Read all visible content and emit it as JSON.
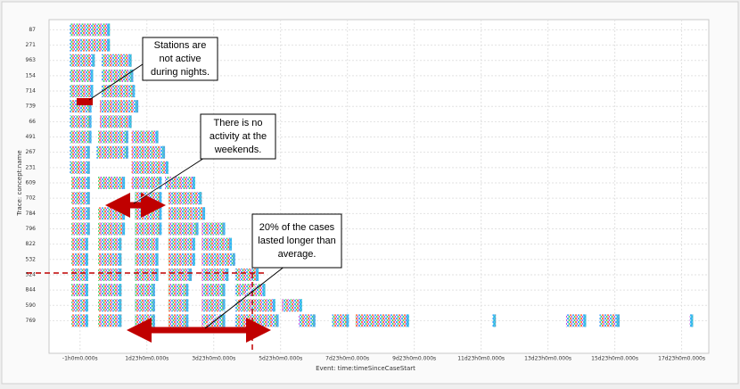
{
  "chart_data": {
    "type": "dotted",
    "x_label": "Event: time:timeSinceCaseStart",
    "y_label": "Trace: concept:name",
    "xlim": [
      -0.97,
      18.77
    ],
    "ylim": [
      -0.2,
      20.2
    ],
    "xticks": [
      {
        "value": -0.042,
        "label": "-1h0m0.000s"
      },
      {
        "value": 1.958,
        "label": "1d23h0m0.000s"
      },
      {
        "value": 3.958,
        "label": "3d23h0m0.000s"
      },
      {
        "value": 5.958,
        "label": "5d23h0m0.000s"
      },
      {
        "value": 7.958,
        "label": "7d23h0m0.000s"
      },
      {
        "value": 9.958,
        "label": "9d23h0m0.000s"
      },
      {
        "value": 11.958,
        "label": "11d23h0m0.000s"
      },
      {
        "value": 13.958,
        "label": "13d23h0m0.000s"
      },
      {
        "value": 15.958,
        "label": "15d23h0m0.000s"
      },
      {
        "value": 17.958,
        "label": "17d23h0m0.000s"
      }
    ],
    "yticks": [
      {
        "value": 0,
        "label": "87"
      },
      {
        "value": 1,
        "label": "271"
      },
      {
        "value": 2,
        "label": "963"
      },
      {
        "value": 3,
        "label": "154"
      },
      {
        "value": 4,
        "label": "714"
      },
      {
        "value": 5,
        "label": "739"
      },
      {
        "value": 6,
        "label": "66"
      },
      {
        "value": 7,
        "label": "491"
      },
      {
        "value": 8,
        "label": "267"
      },
      {
        "value": 9,
        "label": "231"
      },
      {
        "value": 10,
        "label": "609"
      },
      {
        "value": 11,
        "label": "702"
      },
      {
        "value": 12,
        "label": "784"
      },
      {
        "value": 13,
        "label": "796"
      },
      {
        "value": 14,
        "label": "822"
      },
      {
        "value": 15,
        "label": "532"
      },
      {
        "value": 16,
        "label": "524"
      },
      {
        "value": 17,
        "label": "844"
      },
      {
        "value": 18,
        "label": "590"
      },
      {
        "value": 19,
        "label": "769"
      }
    ],
    "grid": true,
    "segments": [
      [
        0,
        -0.35,
        0.85
      ],
      [
        1,
        -0.35,
        0.85
      ],
      [
        2,
        -0.35,
        0.4
      ],
      [
        2,
        0.6,
        1.5
      ],
      [
        3,
        -0.35,
        0.35
      ],
      [
        3,
        0.6,
        1.55
      ],
      [
        4,
        -0.35,
        0.35
      ],
      [
        4,
        0.6,
        1.6
      ],
      [
        5,
        -0.35,
        0.3
      ],
      [
        5,
        0.55,
        1.7
      ],
      [
        6,
        -0.35,
        0.3
      ],
      [
        6,
        0.55,
        1.5
      ],
      [
        7,
        -0.35,
        0.3
      ],
      [
        7,
        0.5,
        1.4
      ],
      [
        7,
        1.5,
        2.3
      ],
      [
        8,
        -0.35,
        0.25
      ],
      [
        8,
        0.45,
        1.4
      ],
      [
        8,
        1.5,
        2.5
      ],
      [
        9,
        -0.35,
        0.25
      ],
      [
        9,
        1.5,
        2.6
      ],
      [
        10,
        -0.3,
        0.25
      ],
      [
        10,
        0.5,
        1.3
      ],
      [
        10,
        1.5,
        2.4
      ],
      [
        10,
        2.5,
        3.4
      ],
      [
        11,
        -0.3,
        0.25
      ],
      [
        11,
        1.6,
        2.4
      ],
      [
        11,
        2.6,
        3.6
      ],
      [
        12,
        -0.3,
        0.25
      ],
      [
        12,
        0.5,
        1.3
      ],
      [
        12,
        1.6,
        2.4
      ],
      [
        12,
        2.6,
        3.7
      ],
      [
        13,
        -0.3,
        0.25
      ],
      [
        13,
        0.5,
        1.3
      ],
      [
        13,
        1.6,
        2.4
      ],
      [
        13,
        2.6,
        3.5
      ],
      [
        13,
        3.6,
        4.3
      ],
      [
        14,
        -0.3,
        0.2
      ],
      [
        14,
        0.5,
        1.2
      ],
      [
        14,
        1.6,
        2.3
      ],
      [
        14,
        2.6,
        3.4
      ],
      [
        14,
        3.6,
        4.5
      ],
      [
        15,
        -0.3,
        0.2
      ],
      [
        15,
        0.5,
        1.2
      ],
      [
        15,
        1.6,
        2.3
      ],
      [
        15,
        2.6,
        3.4
      ],
      [
        15,
        3.6,
        4.6
      ],
      [
        16,
        -0.3,
        0.2
      ],
      [
        16,
        0.5,
        1.2
      ],
      [
        16,
        1.6,
        2.3
      ],
      [
        16,
        2.6,
        3.3
      ],
      [
        16,
        3.6,
        4.4
      ],
      [
        16,
        4.6,
        5.3
      ],
      [
        17,
        -0.3,
        0.2
      ],
      [
        17,
        0.5,
        1.2
      ],
      [
        17,
        1.6,
        2.2
      ],
      [
        17,
        2.6,
        3.2
      ],
      [
        17,
        3.6,
        4.3
      ],
      [
        17,
        4.6,
        5.5
      ],
      [
        18,
        -0.3,
        0.2
      ],
      [
        18,
        0.5,
        1.2
      ],
      [
        18,
        1.6,
        2.2
      ],
      [
        18,
        2.6,
        3.2
      ],
      [
        18,
        3.6,
        4.3
      ],
      [
        18,
        4.6,
        5.8
      ],
      [
        18,
        6.0,
        6.6
      ],
      [
        19,
        -0.3,
        0.2
      ],
      [
        19,
        0.5,
        1.2
      ],
      [
        19,
        1.6,
        2.2
      ],
      [
        19,
        2.6,
        3.2
      ],
      [
        19,
        3.6,
        4.3
      ],
      [
        19,
        4.6,
        5.9
      ],
      [
        19,
        6.5,
        7.0
      ],
      [
        19,
        7.5,
        8.0
      ],
      [
        19,
        8.2,
        9.8
      ],
      [
        19,
        12.3,
        12.4
      ],
      [
        19,
        14.5,
        15.1
      ],
      [
        19,
        15.5,
        16.1
      ],
      [
        19,
        18.2,
        18.3
      ]
    ],
    "annotations": [
      {
        "lines": [
          "Stations are",
          "not active",
          "during nights."
        ]
      },
      {
        "lines": [
          "There is no",
          "activity at the",
          "weekends."
        ]
      },
      {
        "lines": [
          "20% of the cases",
          "lasted longer than",
          "average."
        ]
      }
    ]
  }
}
